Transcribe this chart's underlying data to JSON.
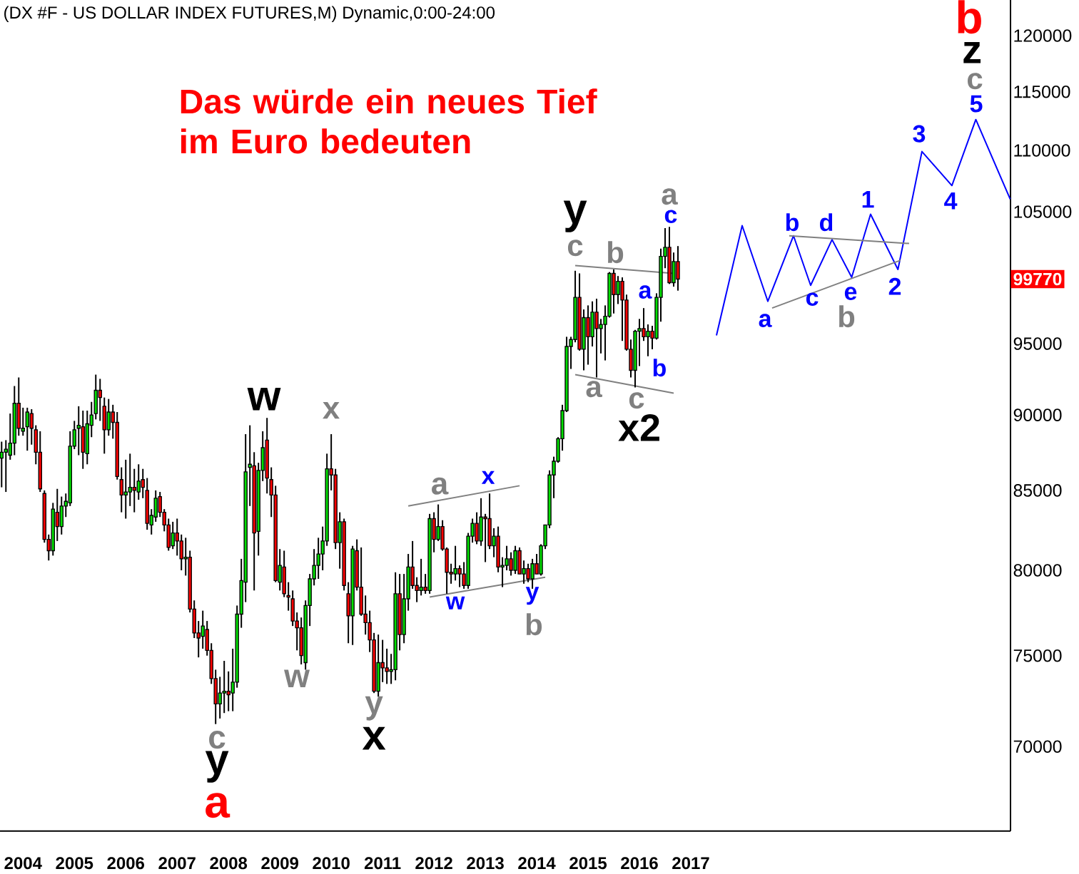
{
  "chart_data": {
    "type": "candlestick",
    "title": "(DX #F - US DOLLAR INDEX FUTURES,M) Dynamic,0:00-24:00",
    "x": [
      "2004-01",
      "2004-02",
      "2004-03",
      "2004-04",
      "2004-05",
      "2004-06",
      "2004-07",
      "2004-08",
      "2004-09",
      "2004-10",
      "2004-11",
      "2004-12",
      "2005-01",
      "2005-02",
      "2005-03",
      "2005-04",
      "2005-05",
      "2005-06",
      "2005-07",
      "2005-08",
      "2005-09",
      "2005-10",
      "2005-11",
      "2005-12",
      "2006-01",
      "2006-02",
      "2006-03",
      "2006-04",
      "2006-05",
      "2006-06",
      "2006-07",
      "2006-08",
      "2006-09",
      "2006-10",
      "2006-11",
      "2006-12",
      "2007-01",
      "2007-02",
      "2007-03",
      "2007-04",
      "2007-05",
      "2007-06",
      "2007-07",
      "2007-08",
      "2007-09",
      "2007-10",
      "2007-11",
      "2007-12",
      "2008-01",
      "2008-02",
      "2008-03",
      "2008-04",
      "2008-05",
      "2008-06",
      "2008-07",
      "2008-08",
      "2008-09",
      "2008-10",
      "2008-11",
      "2008-12",
      "2009-01",
      "2009-02",
      "2009-03",
      "2009-04",
      "2009-05",
      "2009-06",
      "2009-07",
      "2009-08",
      "2009-09",
      "2009-10",
      "2009-11",
      "2009-12",
      "2010-01",
      "2010-02",
      "2010-03",
      "2010-04",
      "2010-05",
      "2010-06",
      "2010-07",
      "2010-08",
      "2010-09",
      "2010-10",
      "2010-11",
      "2010-12",
      "2011-01",
      "2011-02",
      "2011-03",
      "2011-04",
      "2011-05",
      "2011-06",
      "2011-07",
      "2011-08",
      "2011-09",
      "2011-10",
      "2011-11",
      "2011-12",
      "2012-01",
      "2012-02",
      "2012-03",
      "2012-04",
      "2012-05",
      "2012-06",
      "2012-07",
      "2012-08",
      "2012-09",
      "2012-10",
      "2012-11",
      "2012-12",
      "2013-01",
      "2013-02",
      "2013-03",
      "2013-04",
      "2013-05",
      "2013-06",
      "2013-07",
      "2013-08",
      "2013-09",
      "2013-10",
      "2013-11",
      "2013-12",
      "2014-01",
      "2014-02",
      "2014-03",
      "2014-04",
      "2014-05",
      "2014-06",
      "2014-07",
      "2014-08",
      "2014-09",
      "2014-10",
      "2014-11",
      "2014-12",
      "2015-01",
      "2015-02",
      "2015-03",
      "2015-04",
      "2015-05",
      "2015-06",
      "2015-07",
      "2015-08",
      "2015-09",
      "2015-10",
      "2015-11",
      "2015-12",
      "2016-01",
      "2016-02",
      "2016-03",
      "2016-04",
      "2016-05",
      "2016-06",
      "2016-07",
      "2016-08",
      "2016-09",
      "2016-10",
      "2016-11",
      "2016-12",
      "2017-01",
      "2017-02",
      "2017-03"
    ],
    "ohlc": [
      [
        87100,
        88200,
        85200,
        87500
      ],
      [
        87500,
        88300,
        84900,
        87700
      ],
      [
        87300,
        90100,
        87000,
        88100
      ],
      [
        88100,
        92000,
        87300,
        90800
      ],
      [
        90800,
        92600,
        88600,
        89100
      ],
      [
        88900,
        90500,
        88600,
        89100
      ],
      [
        89200,
        90500,
        87600,
        90200
      ],
      [
        90100,
        90400,
        88000,
        89100
      ],
      [
        89000,
        89300,
        86700,
        87500
      ],
      [
        87500,
        88900,
        84900,
        85100
      ],
      [
        84800,
        85000,
        81700,
        81900
      ],
      [
        81900,
        82200,
        80600,
        81200
      ],
      [
        81200,
        84200,
        80900,
        83800
      ],
      [
        83600,
        85100,
        81800,
        82700
      ],
      [
        82700,
        84600,
        82200,
        84000
      ],
      [
        84000,
        84800,
        83300,
        84300
      ],
      [
        84200,
        88900,
        84000,
        87900
      ],
      [
        87900,
        89600,
        87700,
        89000
      ],
      [
        89100,
        90600,
        87300,
        89300
      ],
      [
        89200,
        90300,
        86400,
        87500
      ],
      [
        87400,
        90300,
        86700,
        89400
      ],
      [
        89300,
        90900,
        88500,
        90000
      ],
      [
        90100,
        92800,
        89700,
        91700
      ],
      [
        91700,
        92500,
        89600,
        91200
      ],
      [
        90600,
        91200,
        87400,
        89000
      ],
      [
        89000,
        91100,
        88600,
        90200
      ],
      [
        90200,
        90700,
        88400,
        89500
      ],
      [
        89500,
        90200,
        85700,
        85900
      ],
      [
        85700,
        86500,
        83600,
        84700
      ],
      [
        84700,
        87000,
        83200,
        84900
      ],
      [
        84900,
        87400,
        84000,
        85200
      ],
      [
        85200,
        86400,
        83600,
        85000
      ],
      [
        84900,
        86700,
        84400,
        85600
      ],
      [
        85700,
        86400,
        84500,
        85200
      ],
      [
        85000,
        85800,
        82500,
        82900
      ],
      [
        82800,
        83800,
        82200,
        83400
      ],
      [
        83300,
        85000,
        83000,
        84500
      ],
      [
        84600,
        84900,
        83300,
        83600
      ],
      [
        83600,
        83800,
        82400,
        82800
      ],
      [
        82800,
        83200,
        81200,
        81400
      ],
      [
        81500,
        83000,
        81300,
        82300
      ],
      [
        82300,
        83200,
        80900,
        81800
      ],
      [
        81800,
        82200,
        80000,
        80700
      ],
      [
        80700,
        82000,
        79700,
        80800
      ],
      [
        80800,
        81200,
        77500,
        77700
      ],
      [
        77700,
        78200,
        76000,
        76300
      ],
      [
        76300,
        77000,
        74900,
        76000
      ],
      [
        76100,
        77600,
        75400,
        76700
      ],
      [
        76500,
        77000,
        75000,
        75300
      ],
      [
        75300,
        75700,
        73400,
        73700
      ],
      [
        73700,
        74200,
        71200,
        72300
      ],
      [
        72300,
        73800,
        71500,
        72900
      ],
      [
        72900,
        74700,
        71800,
        73000
      ],
      [
        73000,
        74100,
        71900,
        72800
      ],
      [
        72900,
        75400,
        71900,
        73500
      ],
      [
        73500,
        77900,
        73200,
        77400
      ],
      [
        77400,
        80700,
        76600,
        79400
      ],
      [
        79300,
        88700,
        78100,
        86200
      ],
      [
        86500,
        89300,
        84000,
        86700
      ],
      [
        86600,
        87500,
        78800,
        82300
      ],
      [
        82400,
        86800,
        80900,
        86300
      ],
      [
        86300,
        88900,
        85600,
        87800
      ],
      [
        88300,
        89800,
        84800,
        85800
      ],
      [
        85700,
        86500,
        83300,
        84700
      ],
      [
        84700,
        85300,
        79300,
        79400
      ],
      [
        79300,
        81300,
        78800,
        80300
      ],
      [
        80200,
        81200,
        78400,
        78600
      ],
      [
        78500,
        79300,
        77600,
        78400
      ],
      [
        78300,
        78800,
        76700,
        77000
      ],
      [
        77000,
        77500,
        75300,
        76600
      ],
      [
        76600,
        77200,
        74500,
        75000
      ],
      [
        74600,
        78200,
        74200,
        77900
      ],
      [
        77900,
        79800,
        76700,
        79500
      ],
      [
        79500,
        81300,
        79100,
        80300
      ],
      [
        80300,
        82000,
        79500,
        81000
      ],
      [
        81000,
        82700,
        80000,
        81800
      ],
      [
        81800,
        87400,
        81500,
        86400
      ],
      [
        86400,
        88700,
        85000,
        86000
      ],
      [
        86000,
        86400,
        81300,
        81700
      ],
      [
        81700,
        83600,
        80100,
        83000
      ],
      [
        83000,
        83200,
        78800,
        79100
      ],
      [
        78600,
        79300,
        75700,
        77300
      ],
      [
        77300,
        81500,
        75600,
        81300
      ],
      [
        81200,
        81900,
        78800,
        79000
      ],
      [
        79000,
        81400,
        77300,
        77400
      ],
      [
        77400,
        78500,
        76200,
        76900
      ],
      [
        76900,
        77600,
        75200,
        75900
      ],
      [
        75900,
        76300,
        72900,
        73000
      ],
      [
        73000,
        76200,
        72700,
        74600
      ],
      [
        74600,
        75900,
        73500,
        74300
      ],
      [
        74300,
        75400,
        73400,
        74100
      ],
      [
        74100,
        75100,
        73400,
        74200
      ],
      [
        74200,
        79900,
        73600,
        78600
      ],
      [
        78600,
        79800,
        75300,
        76200
      ],
      [
        76200,
        79800,
        75700,
        78300
      ],
      [
        78300,
        81000,
        77600,
        80200
      ],
      [
        80200,
        81800,
        78900,
        79100
      ],
      [
        79100,
        79600,
        78100,
        78800
      ],
      [
        78800,
        80700,
        78500,
        79000
      ],
      [
        79000,
        79800,
        78600,
        78800
      ],
      [
        78800,
        83500,
        78600,
        83200
      ],
      [
        83200,
        83600,
        81100,
        81900
      ],
      [
        81900,
        84100,
        81800,
        82700
      ],
      [
        82700,
        83100,
        81200,
        81300
      ],
      [
        81300,
        81400,
        78600,
        79900
      ],
      [
        79900,
        80400,
        79200,
        79800
      ],
      [
        79800,
        81500,
        79400,
        80100
      ],
      [
        80100,
        80300,
        79000,
        79800
      ],
      [
        79800,
        80500,
        78900,
        79100
      ],
      [
        79100,
        82300,
        78900,
        82100
      ],
      [
        82100,
        83200,
        81700,
        82900
      ],
      [
        82900,
        83600,
        81600,
        81800
      ],
      [
        81800,
        84500,
        81500,
        83300
      ],
      [
        83300,
        83500,
        80500,
        83200
      ],
      [
        83200,
        84800,
        81300,
        81500
      ],
      [
        81500,
        82600,
        80800,
        82100
      ],
      [
        82100,
        82700,
        79900,
        80200
      ],
      [
        80200,
        80800,
        79000,
        80300
      ],
      [
        80300,
        81500,
        80000,
        80700
      ],
      [
        80700,
        81100,
        79700,
        80000
      ],
      [
        80000,
        81500,
        79800,
        81200
      ],
      [
        81200,
        81400,
        79800,
        79800
      ],
      [
        79800,
        80600,
        79200,
        80100
      ],
      [
        80100,
        80400,
        79300,
        79500
      ],
      [
        79500,
        80700,
        78900,
        80400
      ],
      [
        80400,
        81000,
        79800,
        79800
      ],
      [
        79800,
        81600,
        79700,
        81500
      ],
      [
        81500,
        82800,
        81300,
        82800
      ],
      [
        82800,
        86300,
        82600,
        86000
      ],
      [
        86000,
        87200,
        84500,
        86900
      ],
      [
        86900,
        88500,
        86800,
        88400
      ],
      [
        88400,
        90700,
        87600,
        90300
      ],
      [
        90300,
        95500,
        90200,
        94800
      ],
      [
        94800,
        95500,
        93200,
        95300
      ],
      [
        95300,
        100400,
        95100,
        98400
      ],
      [
        98400,
        100200,
        94500,
        94600
      ],
      [
        94600,
        97500,
        93100,
        96900
      ],
      [
        96900,
        97800,
        93500,
        95500
      ],
      [
        95500,
        98100,
        94800,
        97300
      ],
      [
        97300,
        98300,
        92600,
        96100
      ],
      [
        96100,
        96800,
        94300,
        96400
      ],
      [
        96400,
        97800,
        93800,
        97000
      ],
      [
        97000,
        100300,
        96900,
        100200
      ],
      [
        100200,
        100500,
        97200,
        98600
      ],
      [
        98600,
        100000,
        97900,
        99600
      ],
      [
        99600,
        99900,
        95200,
        98200
      ],
      [
        98200,
        98600,
        94500,
        94600
      ],
      [
        94600,
        95300,
        92600,
        93100
      ],
      [
        93100,
        96000,
        91900,
        95900
      ],
      [
        95900,
        96800,
        93400,
        96100
      ],
      [
        96100,
        97600,
        95200,
        95500
      ],
      [
        95500,
        96400,
        94100,
        95900
      ],
      [
        95900,
        96300,
        94600,
        95400
      ],
      [
        95400,
        98700,
        95300,
        98400
      ],
      [
        98400,
        102100,
        96600,
        101500
      ],
      [
        101500,
        103700,
        100600,
        102200
      ],
      [
        102200,
        103800,
        99400,
        99500
      ],
      [
        99500,
        101800,
        99200,
        101100
      ],
      [
        101100,
        102300,
        98900,
        99770
      ]
    ],
    "xlim": [
      "2003-12-20",
      "2023-08-22"
    ],
    "xticks": [
      {
        "value": "2004-06",
        "label": "2004"
      },
      {
        "value": "2005-06",
        "label": "2005"
      },
      {
        "value": "2006-06",
        "label": "2006"
      },
      {
        "value": "2007-06",
        "label": "2007"
      },
      {
        "value": "2008-06",
        "label": "2008"
      },
      {
        "value": "2009-06",
        "label": "2009"
      },
      {
        "value": "2010-06",
        "label": "2010"
      },
      {
        "value": "2011-06",
        "label": "2011"
      },
      {
        "value": "2012-06",
        "label": "2012"
      },
      {
        "value": "2013-06",
        "label": "2013"
      },
      {
        "value": "2014-06",
        "label": "2014"
      },
      {
        "value": "2015-06",
        "label": "2015"
      },
      {
        "value": "2016-06",
        "label": "2016"
      },
      {
        "value": "2017-06",
        "label": "2017"
      }
    ],
    "ylim": [
      65650,
      123300
    ],
    "yticks": [
      70000,
      75000,
      80000,
      85000,
      90000,
      95000,
      105000,
      110000,
      115000,
      120000
    ],
    "log": true,
    "series": [
      {
        "type": "line",
        "color": "#0000ff",
        "x": [
          "2017-12",
          "2018-06",
          "2018-12",
          "2019-06",
          "2019-10",
          "2020-03",
          "2020-07-19",
          "2020-12",
          "2021-06-13",
          "2021-12",
          "2022-07",
          "2022-12-19",
          "2023-08-20"
        ],
        "values": [
          95600,
          103900,
          98100,
          103100,
          99300,
          102800,
          99900,
          104800,
          100500,
          109900,
          107100,
          112600,
          106000
        ]
      },
      {
        "type": "line",
        "color": "#808080",
        "x": [
          "2011-12",
          "2014-02"
        ],
        "values": [
          84000,
          85300
        ]
      },
      {
        "type": "line",
        "color": "#808080",
        "x": [
          "2012-05",
          "2014-08"
        ],
        "values": [
          78400,
          79600
        ]
      },
      {
        "type": "line",
        "color": "#808080",
        "x": [
          "2015-03",
          "2017-02"
        ],
        "values": [
          100800,
          100200
        ]
      },
      {
        "type": "line",
        "color": "#808080",
        "x": [
          "2015-03",
          "2017-02"
        ],
        "values": [
          92800,
          91500
        ]
      },
      {
        "type": "line",
        "color": "#808080",
        "x": [
          "2019-05",
          "2021-09"
        ],
        "values": [
          103100,
          102500
        ]
      },
      {
        "type": "line",
        "color": "#808080",
        "x": [
          "2019-01",
          "2021-07"
        ],
        "values": [
          97600,
          101200
        ]
      }
    ],
    "annotations": [
      "Das würde ein neues Tief im Euro bedeuten",
      "99770",
      "c",
      "y",
      "a",
      "w",
      "w",
      "x",
      "y",
      "x",
      "a",
      "x",
      "w",
      "y",
      "b",
      "y",
      "c",
      "b",
      "a",
      "a",
      "c",
      "b",
      "x2",
      "a",
      "c",
      "a",
      "b",
      "c",
      "d",
      "e",
      "1",
      "2",
      "3",
      "4",
      "5",
      "b",
      "c",
      "z",
      "b"
    ]
  }
}
